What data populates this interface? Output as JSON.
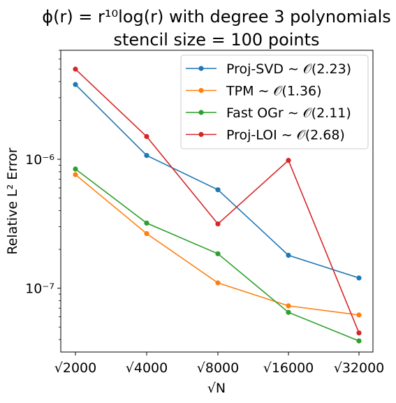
{
  "chart_data": {
    "type": "line",
    "title": "ϕ(r) = r¹⁰log(r) with degree 3 polynomials",
    "subtitle": "stencil size = 100 points",
    "xlabel": "√N",
    "ylabel": "Relative L² Error",
    "yscale": "log",
    "ylim": [
      3.2e-08,
      7e-06
    ],
    "categories": [
      "√2000",
      "√4000",
      "√8000",
      "√16000",
      "√32000"
    ],
    "y_ticks": [
      {
        "value": 1e-06,
        "label": "10⁻⁶"
      },
      {
        "value": 1e-07,
        "label": "10⁻⁷"
      }
    ],
    "grid": false,
    "legend_position": "top-right",
    "series": [
      {
        "name": "Proj-SVD ∼ 𝒪(2.23)",
        "color": "#1f77b4",
        "values": [
          3.8e-06,
          1.07e-06,
          5.8e-07,
          1.8e-07,
          1.2e-07
        ]
      },
      {
        "name": "TPM ∼ 𝒪(1.36)",
        "color": "#ff7f0e",
        "values": [
          7.6e-07,
          2.65e-07,
          1.1e-07,
          7.3e-08,
          6.2e-08
        ]
      },
      {
        "name": "Fast OGr ∼ 𝒪(2.11)",
        "color": "#2ca02c",
        "values": [
          8.4e-07,
          3.2e-07,
          1.85e-07,
          6.5e-08,
          3.9e-08
        ]
      },
      {
        "name": "Proj-LOI ∼ 𝒪(2.68)",
        "color": "#d62728",
        "values": [
          5e-06,
          1.5e-06,
          3.15e-07,
          9.8e-07,
          4.5e-08
        ]
      }
    ]
  }
}
